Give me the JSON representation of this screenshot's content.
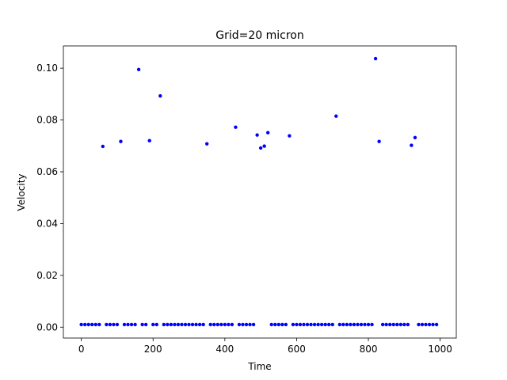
{
  "chart_data": {
    "type": "scatter",
    "title": "Grid=20 micron",
    "xlabel": "Time",
    "ylabel": "Velocity",
    "xlim": [
      -50,
      1045
    ],
    "ylim": [
      -0.0042,
      0.1086
    ],
    "xticks": [
      0,
      200,
      400,
      600,
      800,
      1000
    ],
    "xtick_labels": [
      "0",
      "200",
      "400",
      "600",
      "800",
      "1000"
    ],
    "yticks": [
      0.0,
      0.02,
      0.04,
      0.06,
      0.08,
      0.1
    ],
    "ytick_labels": [
      "0.00",
      "0.02",
      "0.04",
      "0.06",
      "0.08",
      "0.10"
    ],
    "grid": false,
    "marker_color": "#0000ff",
    "x": [
      0,
      10,
      20,
      30,
      40,
      50,
      60,
      70,
      80,
      90,
      100,
      110,
      120,
      130,
      140,
      150,
      160,
      170,
      180,
      190,
      200,
      210,
      220,
      230,
      240,
      250,
      260,
      270,
      280,
      290,
      300,
      310,
      320,
      330,
      340,
      350,
      360,
      370,
      380,
      390,
      400,
      410,
      420,
      430,
      440,
      450,
      460,
      470,
      480,
      490,
      500,
      510,
      520,
      530,
      540,
      550,
      560,
      570,
      580,
      590,
      600,
      610,
      620,
      630,
      640,
      650,
      660,
      670,
      680,
      690,
      700,
      710,
      720,
      730,
      740,
      750,
      760,
      770,
      780,
      790,
      800,
      810,
      820,
      830,
      840,
      850,
      860,
      870,
      880,
      890,
      900,
      910,
      920,
      930,
      940,
      950,
      960,
      970,
      980,
      990
    ],
    "y": [
      0.001,
      0.001,
      0.001,
      0.001,
      0.001,
      0.001,
      0.0698,
      0.001,
      0.001,
      0.001,
      0.001,
      0.0717,
      0.001,
      0.001,
      0.001,
      0.001,
      0.0995,
      0.001,
      0.001,
      0.072,
      0.001,
      0.001,
      0.0893,
      0.001,
      0.001,
      0.001,
      0.001,
      0.001,
      0.001,
      0.001,
      0.001,
      0.001,
      0.001,
      0.001,
      0.001,
      0.0708,
      0.001,
      0.001,
      0.001,
      0.001,
      0.001,
      0.001,
      0.001,
      0.0772,
      0.001,
      0.001,
      0.001,
      0.001,
      0.001,
      0.0742,
      0.0692,
      0.0699,
      0.0751,
      0.001,
      0.001,
      0.001,
      0.001,
      0.001,
      0.0739,
      0.001,
      0.001,
      0.001,
      0.001,
      0.001,
      0.001,
      0.001,
      0.001,
      0.001,
      0.001,
      0.001,
      0.001,
      0.0815,
      0.001,
      0.001,
      0.001,
      0.001,
      0.001,
      0.001,
      0.001,
      0.001,
      0.001,
      0.001,
      0.1037,
      0.0717,
      0.001,
      0.001,
      0.001,
      0.001,
      0.001,
      0.001,
      0.001,
      0.001,
      0.0702,
      0.0732,
      0.001,
      0.001,
      0.001,
      0.001,
      0.001,
      0.001
    ]
  }
}
